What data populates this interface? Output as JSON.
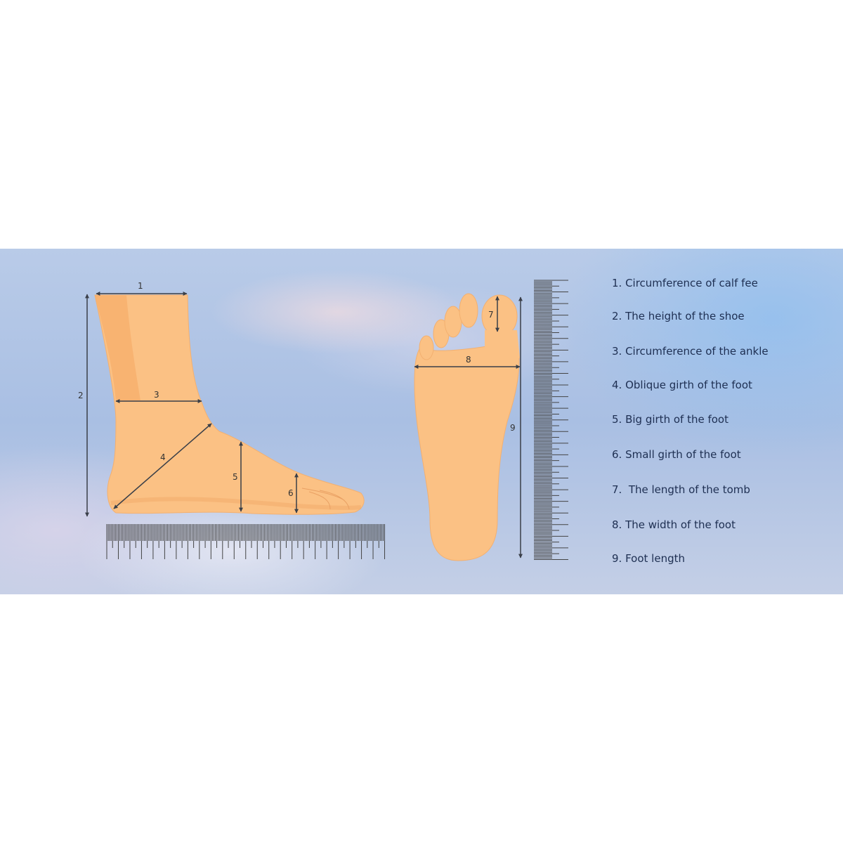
{
  "colors": {
    "skin": "#fbc184",
    "skin_shade": "#f6ad6a",
    "arrow": "#3a3f48",
    "legend_text": "#1e2f52"
  },
  "side_view_labels": {
    "m1": "1",
    "m2": "2",
    "m3": "3",
    "m4": "4",
    "m5": "5",
    "m6": "6"
  },
  "top_view_labels": {
    "m7": "7",
    "m8": "8",
    "m9": "9"
  },
  "legend": [
    "1. Circumference of calf fee",
    "2. The height of the shoe",
    "3. Circumference of the ankle",
    "4. Oblique girth of the foot",
    "5. Big girth of the foot",
    "6. Small girth of the foot",
    "7.  The length of the tomb",
    "8. The width of the foot",
    "9. Foot length"
  ]
}
